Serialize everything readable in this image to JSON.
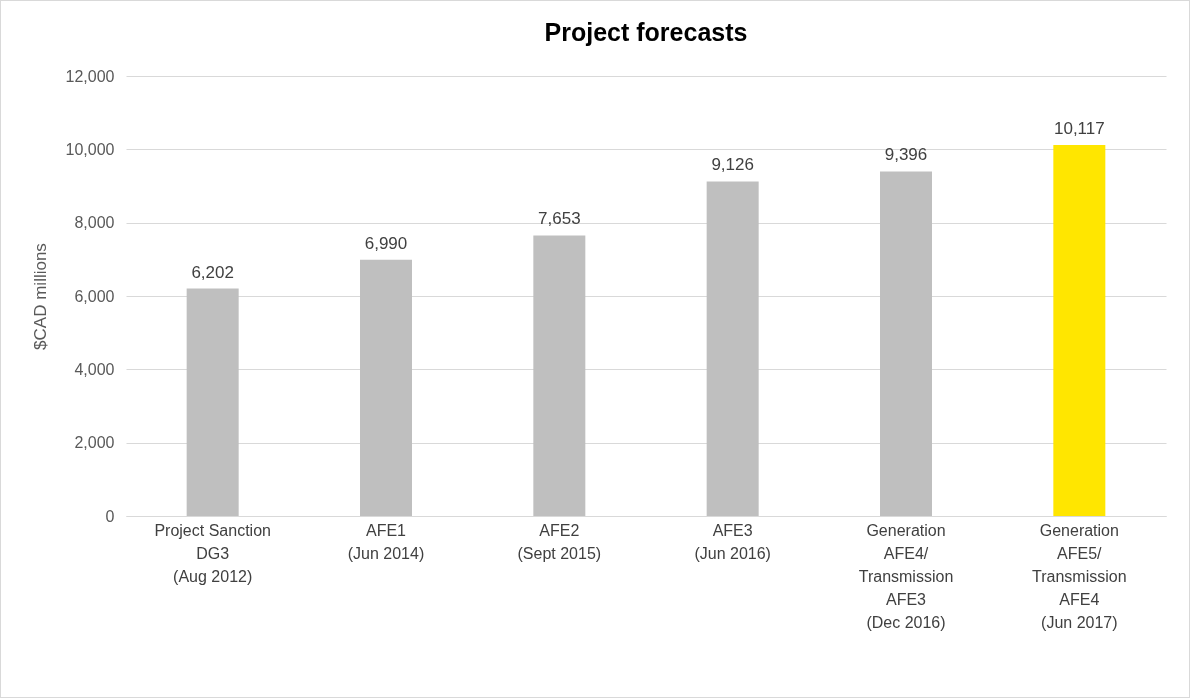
{
  "chart_data": {
    "type": "bar",
    "title": "Project forecasts",
    "ylabel": "$CAD millions",
    "categories": [
      "Project Sanction\nDG3\n(Aug 2012)",
      "AFE1\n(Jun 2014)",
      "AFE2\n(Sept 2015)",
      "AFE3\n(Jun 2016)",
      "Generation\nAFE4/\nTransmission\nAFE3\n(Dec 2016)",
      "Generation\nAFE5/\nTransmission\nAFE4\n(Jun 2017)"
    ],
    "values": [
      6202,
      6990,
      7653,
      9126,
      9396,
      10117
    ],
    "value_labels": [
      "6,202",
      "6,990",
      "7,653",
      "9,126",
      "9,396",
      "10,117"
    ],
    "colors": [
      "#bfbfbf",
      "#bfbfbf",
      "#bfbfbf",
      "#bfbfbf",
      "#bfbfbf",
      "#ffe600"
    ],
    "ylim": [
      0,
      12000
    ],
    "yticks": [
      0,
      {
        "value": 2000,
        "label": "2,000"
      },
      {
        "value": 4000,
        "label": "4,000"
      },
      {
        "value": 6000,
        "label": "6,000"
      },
      {
        "value": 8000,
        "label": "8,000"
      },
      {
        "value": 10000,
        "label": "10,000"
      },
      {
        "value": 12000,
        "label": "12,000"
      }
    ],
    "grid": "y",
    "legend": false
  }
}
